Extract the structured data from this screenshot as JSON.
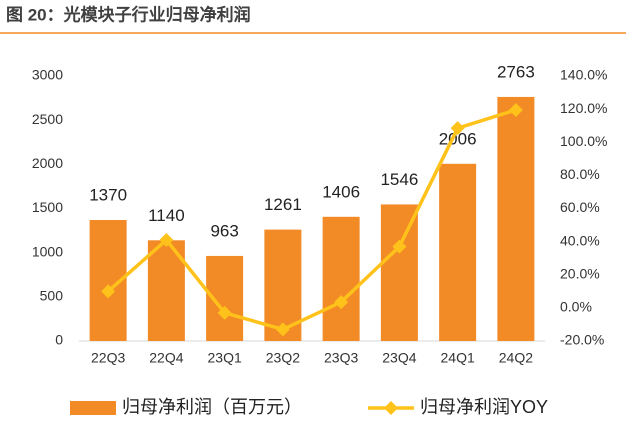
{
  "chart_data": {
    "type": "bar_line",
    "title": "图 20：光模块子行业归母净利润",
    "categories": [
      "22Q3",
      "22Q4",
      "23Q1",
      "23Q2",
      "23Q3",
      "23Q4",
      "24Q1",
      "24Q2"
    ],
    "series": [
      {
        "name": "归母净利润（百万元）",
        "type": "bar",
        "color": "#F28A26",
        "values": [
          1370,
          1140,
          963,
          1261,
          1406,
          1546,
          2006,
          2763
        ]
      },
      {
        "name": "归母净利润YOY",
        "type": "line",
        "axis": "y2",
        "color": "#FFC21A",
        "values": [
          10,
          41,
          -3,
          -13,
          3.5,
          37,
          108.5,
          119.5
        ]
      }
    ],
    "ylim": [
      0,
      3000
    ],
    "yticks": [
      0,
      500,
      1000,
      1500,
      2000,
      2500,
      3000
    ],
    "y2lim": [
      -20,
      140
    ],
    "y2ticks": [
      {
        "value": -20,
        "label": "-20.0%"
      },
      {
        "value": 0,
        "label": "0.0%"
      },
      {
        "value": 20,
        "label": "20.0%"
      },
      {
        "value": 40,
        "label": "40.0%"
      },
      {
        "value": 60,
        "label": "60.0%"
      },
      {
        "value": 80,
        "label": "80.0%"
      },
      {
        "value": 100,
        "label": "100.0%"
      },
      {
        "value": 120,
        "label": "120.0%"
      },
      {
        "value": 140,
        "label": "140.0%"
      }
    ],
    "grid": false,
    "legend": "bottom"
  }
}
